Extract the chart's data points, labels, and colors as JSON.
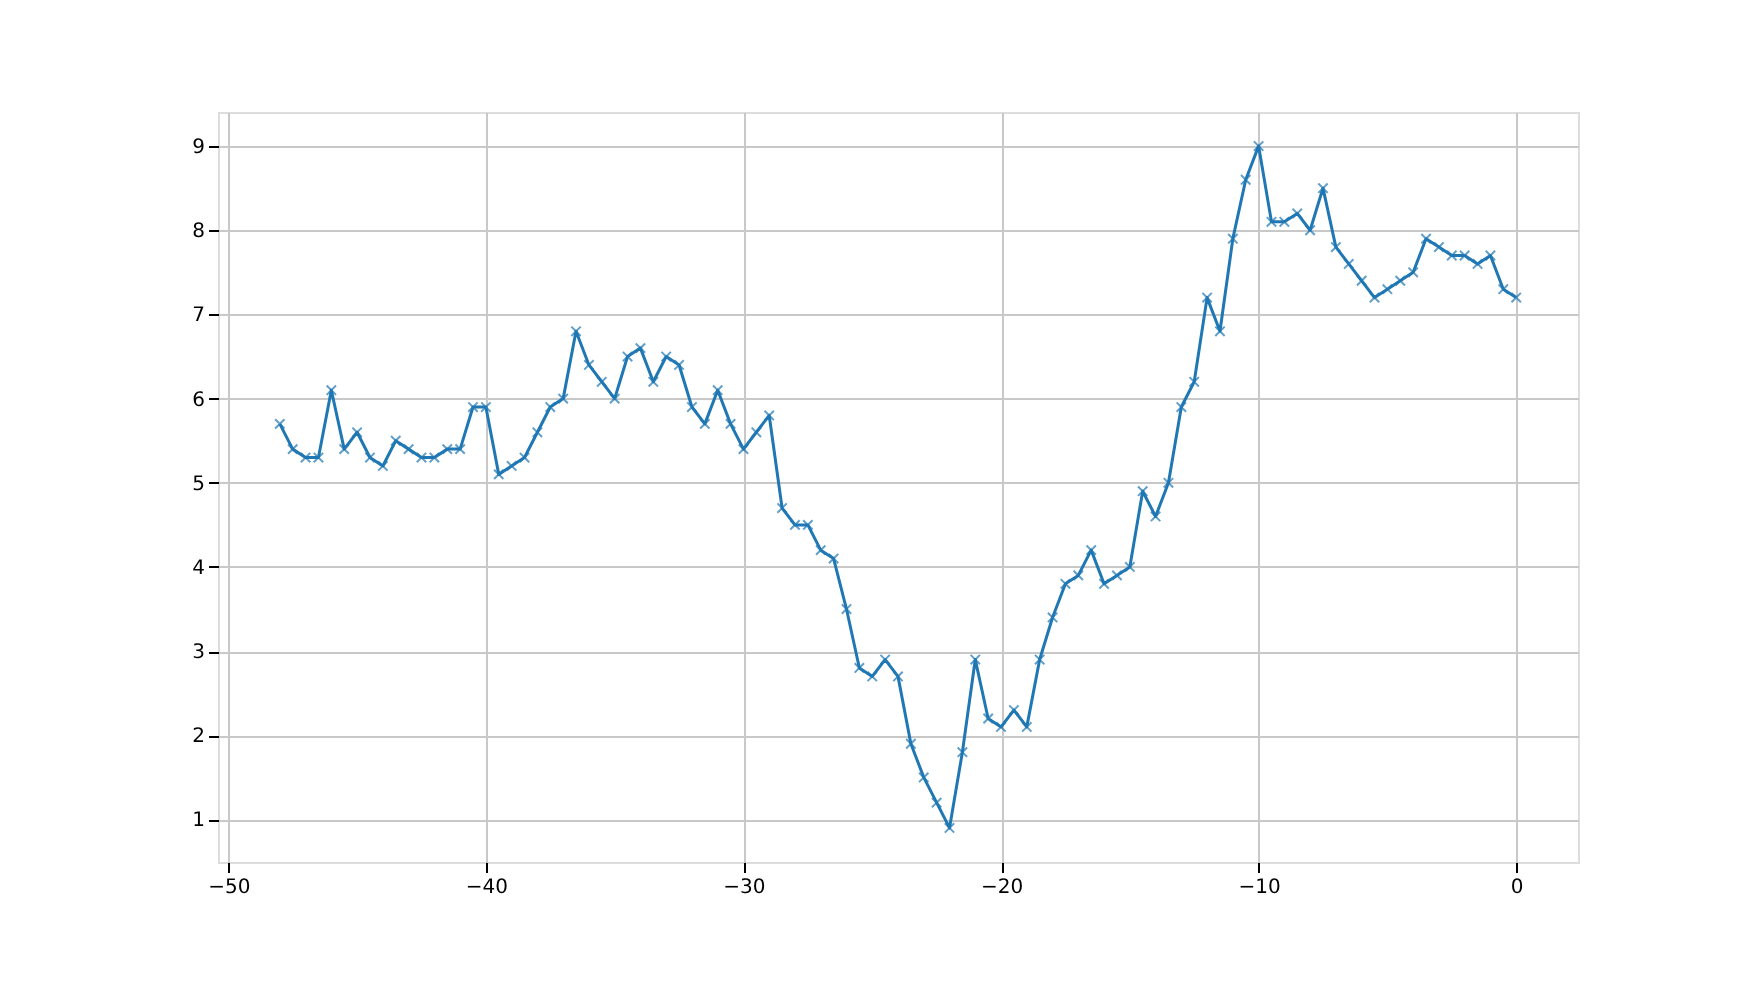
{
  "chart_data": {
    "type": "line",
    "x": [
      -48,
      -47.5,
      -47,
      -46.5,
      -46,
      -45.5,
      -45,
      -44.5,
      -44,
      -43.5,
      -43,
      -42.5,
      -42,
      -41.5,
      -41,
      -40.5,
      -40,
      -39.5,
      -39,
      -38.5,
      -38,
      -37.5,
      -37,
      -36.5,
      -36,
      -35.5,
      -35,
      -34.5,
      -34,
      -33.5,
      -33,
      -32.5,
      -32,
      -31.5,
      -31,
      -30.5,
      -30,
      -29.5,
      -29,
      -28.5,
      -28,
      -27.5,
      -27,
      -26.5,
      -26,
      -25.5,
      -25,
      -24.5,
      -24,
      -23.5,
      -23,
      -22.5,
      -22,
      -21.5,
      -21,
      -20.5,
      -20,
      -19.5,
      -19,
      -18.5,
      -18,
      -17.5,
      -17,
      -16.5,
      -16,
      -15.5,
      -15,
      -14.5,
      -14,
      -13.5,
      -13,
      -12.5,
      -12,
      -11.5,
      -11,
      -10.5,
      -10,
      -9.5,
      -9,
      -8.5,
      -8,
      -7.5,
      -7,
      -6.5,
      -6,
      -5.5,
      -5,
      -4.5,
      -4,
      -3.5,
      -3,
      -2.5,
      -2,
      -1.5,
      -1,
      -0.5,
      0
    ],
    "series": [
      {
        "color": "#1f77b4",
        "values": [
          5.7,
          5.4,
          5.3,
          5.3,
          6.1,
          5.4,
          5.6,
          5.3,
          5.2,
          5.5,
          5.4,
          5.3,
          5.3,
          5.4,
          5.4,
          5.9,
          5.9,
          5.1,
          5.2,
          5.3,
          5.6,
          5.9,
          6.0,
          6.8,
          6.4,
          6.2,
          6.0,
          6.5,
          6.6,
          6.2,
          6.5,
          6.4,
          5.9,
          5.7,
          6.1,
          5.7,
          5.4,
          5.6,
          5.8,
          4.7,
          4.5,
          4.5,
          4.2,
          4.1,
          3.5,
          2.8,
          2.7,
          2.9,
          2.7,
          1.9,
          1.5,
          1.2,
          0.9,
          1.8,
          2.9,
          2.2,
          2.1,
          2.3,
          2.1,
          2.9,
          3.4,
          3.8,
          3.9,
          4.2,
          3.8,
          3.9,
          4.0,
          4.9,
          4.6,
          5.0,
          5.9,
          6.2,
          7.2,
          6.8,
          7.9,
          8.6,
          9.0,
          8.1,
          8.1,
          8.2,
          8.0,
          8.5,
          7.8,
          7.6,
          7.4,
          7.2,
          7.3,
          7.4,
          7.5,
          7.9,
          7.8,
          7.7,
          7.7,
          7.6,
          7.7,
          7.3,
          7.2
        ]
      }
    ],
    "xlim": [
      -50.4,
      2.4
    ],
    "xticks": [
      -50,
      -40,
      -30,
      -20,
      -10,
      0
    ],
    "ylim": [
      0.495,
      9.405
    ],
    "yticks": [
      1,
      2,
      3,
      4,
      5,
      6,
      7,
      8,
      9
    ],
    "grid": true,
    "marker": "cross",
    "line_style": "solid"
  }
}
